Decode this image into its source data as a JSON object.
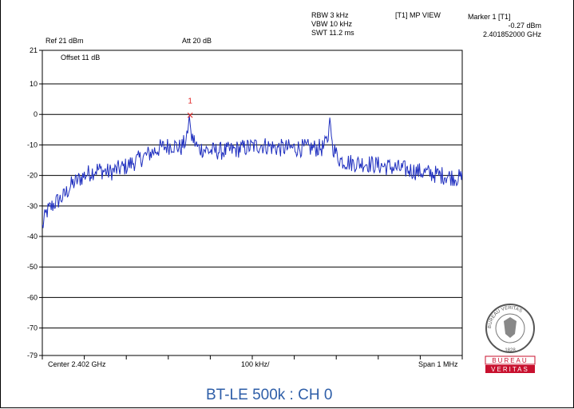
{
  "chart_data": {
    "type": "line",
    "title": "BT-LE 500k : CH 0",
    "ylim": [
      -79,
      21
    ],
    "y_ticks": [
      "21",
      "10",
      "0",
      "-10",
      "-20",
      "-30",
      "-40",
      "-50",
      "-60",
      "-70",
      "-79"
    ],
    "y_tick_values": [
      21,
      10,
      0,
      -10,
      -20,
      -30,
      -40,
      -50,
      -60,
      -70,
      -79
    ],
    "x_center_ghz": 2.402,
    "x_span_mhz": 1,
    "x_range_ghz": [
      2.4015,
      2.4025
    ],
    "grid": true,
    "line_color": "#1f2fbf",
    "series": [
      {
        "x": [
          2.4015,
          2.40151,
          2.40153,
          2.40155,
          2.40157,
          2.4016,
          2.40163,
          2.40166,
          2.4017,
          2.40174,
          2.40178,
          2.40181,
          2.40183,
          2.401845,
          2.40185,
          2.401855,
          2.40187,
          2.4019,
          2.40194,
          2.40198,
          2.40202,
          2.40206,
          2.4021,
          2.40214,
          2.40217,
          2.40218,
          2.402185,
          2.40219,
          2.4022,
          2.40221,
          2.40224,
          2.40227,
          2.4025
        ],
        "y": [
          -37,
          -32,
          -29,
          -27,
          -23,
          -20,
          -18,
          -19,
          -17,
          -14,
          -11,
          -10,
          -11,
          -8,
          -0.27,
          -7,
          -11,
          -12,
          -12,
          -11,
          -10,
          -11,
          -11,
          -11,
          -11,
          -8,
          -0.5,
          -10,
          -13,
          -15,
          -16,
          -16,
          -21
        ]
      }
    ]
  },
  "marker": {
    "number": "1",
    "header": "Marker 1 [T1]",
    "level": "-0.27 dBm",
    "frequency": "2.401852000 GHz",
    "x": 2.401852,
    "y": -0.27
  },
  "settings": {
    "ref": "Ref 21 dBm",
    "att": "Att  20 dB",
    "rbw": "RBW 3 kHz",
    "vbw": "VBW 10 kHz",
    "swt": "SWT 11.2 ms",
    "trace": "[T1] MP VIEW",
    "offset": "Offset 11 dB"
  },
  "footer": {
    "center": "Center 2.402 GHz",
    "div": "100 kHz/",
    "span": "Span 1 MHz"
  },
  "logo": {
    "top": "BUREAU",
    "bottom": "VERITAS",
    "year": "1828",
    "ring_text": "BUREAU VERITAS"
  }
}
